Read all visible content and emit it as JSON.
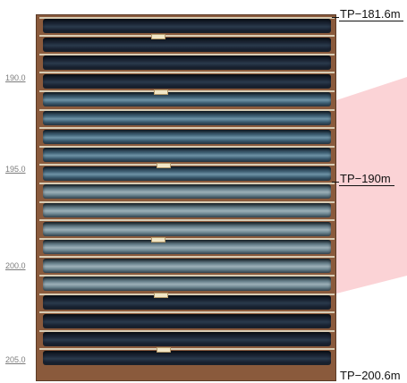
{
  "core_photo": {
    "depth_ticks": [
      "190.0",
      "195.0",
      "200.0",
      "205.0"
    ],
    "tp_labels": {
      "top": "TP−181.6m",
      "middle": "TP−190m",
      "bottom": "TP−200.6m"
    },
    "colors": {
      "box": "#8a5a3c",
      "separator": "#d8ccb4",
      "core_dark": "#1c2636",
      "core_blue": "#3f6074",
      "core_speckled": "#6c8590",
      "highlight": "#fbd3d6"
    },
    "core_rows": [
      {
        "type": "dark"
      },
      {
        "type": "dark"
      },
      {
        "type": "dark"
      },
      {
        "type": "dark"
      },
      {
        "type": "blue"
      },
      {
        "type": "blue"
      },
      {
        "type": "blue"
      },
      {
        "type": "blue"
      },
      {
        "type": "blue"
      },
      {
        "type": "speckled"
      },
      {
        "type": "speckled"
      },
      {
        "type": "speckled"
      },
      {
        "type": "speckled"
      },
      {
        "type": "speckled"
      },
      {
        "type": "speckled"
      },
      {
        "type": "dark"
      },
      {
        "type": "dark"
      },
      {
        "type": "dark"
      },
      {
        "type": "dark"
      }
    ]
  }
}
